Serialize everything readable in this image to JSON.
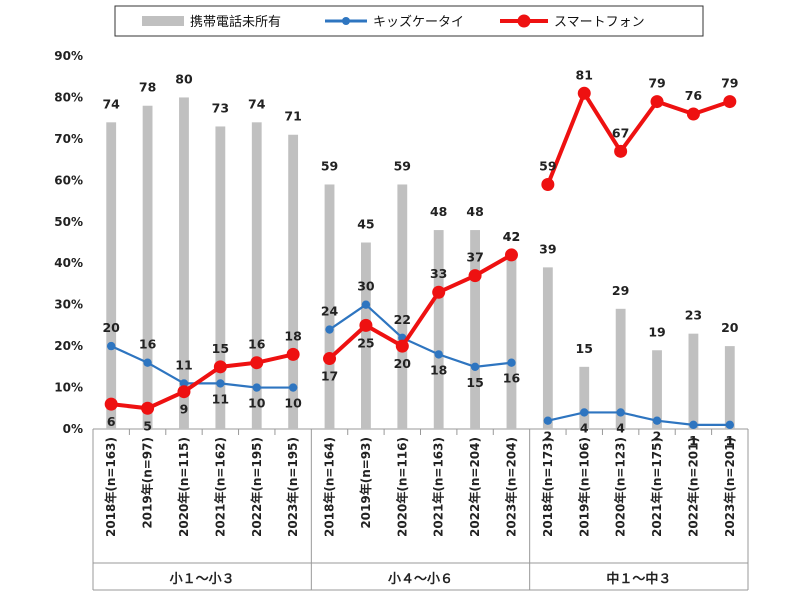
{
  "chart_data": {
    "type": "bar",
    "title": "",
    "xlabel": "",
    "ylabel": "",
    "ylim": [
      0,
      90
    ],
    "yticks": [
      "0%",
      "10%",
      "20%",
      "30%",
      "40%",
      "50%",
      "60%",
      "70%",
      "80%",
      "90%"
    ],
    "legend_position": "top",
    "grid": false,
    "groups": [
      {
        "label": "小１～小３",
        "categories": [
          "2018年(n=163)",
          "2019年(n=97)",
          "2020年(n=115)",
          "2021年(n=162)",
          "2022年(n=195)",
          "2023年(n=195)"
        ],
        "bar_values": [
          74,
          78,
          80,
          73,
          74,
          71
        ],
        "kids_values": [
          20,
          16,
          11,
          11,
          10,
          10
        ],
        "smart_values": [
          6,
          5,
          9,
          15,
          16,
          18
        ]
      },
      {
        "label": "小４～小６",
        "categories": [
          "2018年(n=164)",
          "2019年(n=93)",
          "2020年(n=116)",
          "2021年(n=163)",
          "2022年(n=204)",
          "2023年(n=204)"
        ],
        "bar_values": [
          59,
          45,
          59,
          48,
          48,
          42
        ],
        "kids_values": [
          24,
          30,
          22,
          18,
          15,
          16
        ],
        "smart_values": [
          17,
          25,
          20,
          33,
          37,
          42
        ]
      },
      {
        "label": "中１～中３",
        "categories": [
          "2018年(n=173)",
          "2019年(n=106)",
          "2020年(n=123)",
          "2021年(n=175)",
          "2022年(n=201)",
          "2023年(n=201)"
        ],
        "bar_values": [
          39,
          15,
          29,
          19,
          23,
          20
        ],
        "kids_values": [
          2,
          4,
          4,
          2,
          1,
          1
        ],
        "smart_values": [
          59,
          81,
          67,
          79,
          76,
          79
        ]
      }
    ],
    "series": [
      {
        "name": "携帯電話未所有",
        "kind": "bar",
        "color": "#c0c0c0"
      },
      {
        "name": "キッズケータイ",
        "kind": "line",
        "color": "#2e75c0"
      },
      {
        "name": "スマートフォン",
        "kind": "line",
        "color": "#ee1111"
      }
    ]
  }
}
